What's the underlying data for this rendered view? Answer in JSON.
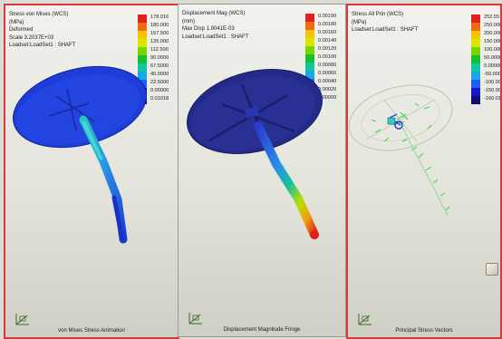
{
  "panels": [
    {
      "header": [
        "Stress von Mises (WCS)",
        "(MPa)",
        "Deformed",
        "Scale  3.2037E+03",
        "Loadset:LoadSet1  :  SHAFT"
      ],
      "legend_values": [
        "178.016",
        "180.000",
        "157.500",
        "135.000",
        "112.500",
        "90.0000",
        "67.5000",
        "45.0000",
        "22.5000",
        "0.00000",
        "0.01018"
      ],
      "caption": "von Mises Stress Animation"
    },
    {
      "header": [
        "Displacement Mag (WCS)",
        "(mm)",
        "Max Disp  1.9041E-03",
        "Loadset:LoadSet1  :  SHAFT"
      ],
      "legend_values": [
        "0.00190",
        "0.00180",
        "0.00160",
        "0.00140",
        "0.00120",
        "0.00100",
        "0.00080",
        "0.00060",
        "0.00040",
        "0.00020",
        "0.00000"
      ],
      "caption": "Displacement Magnitude Fringe"
    },
    {
      "header": [
        "Stress All Prin (WCS)",
        "(MPa)",
        "Loadset:LoadSet1  :  SHAFT"
      ],
      "legend_values": [
        "252.55",
        "250.000",
        "200.000",
        "150.000",
        "100.000",
        "50.0000",
        "0.00000",
        "-50.0000",
        "-100.000",
        "-150.000",
        "-160.01"
      ],
      "caption": "Principal Stress Vectors"
    }
  ],
  "colors": {
    "legend_scale": [
      "#e02020",
      "#f06a10",
      "#f7c400",
      "#d8e600",
      "#7ad400",
      "#18c030",
      "#10c8a0",
      "#18a8e8",
      "#1e5ef0",
      "#1818c8",
      "#101070"
    ],
    "frame_active": "#d83a3a",
    "background": "#e4e4dc"
  },
  "icons": [
    "view-triad-icon",
    "results-window-icon"
  ]
}
